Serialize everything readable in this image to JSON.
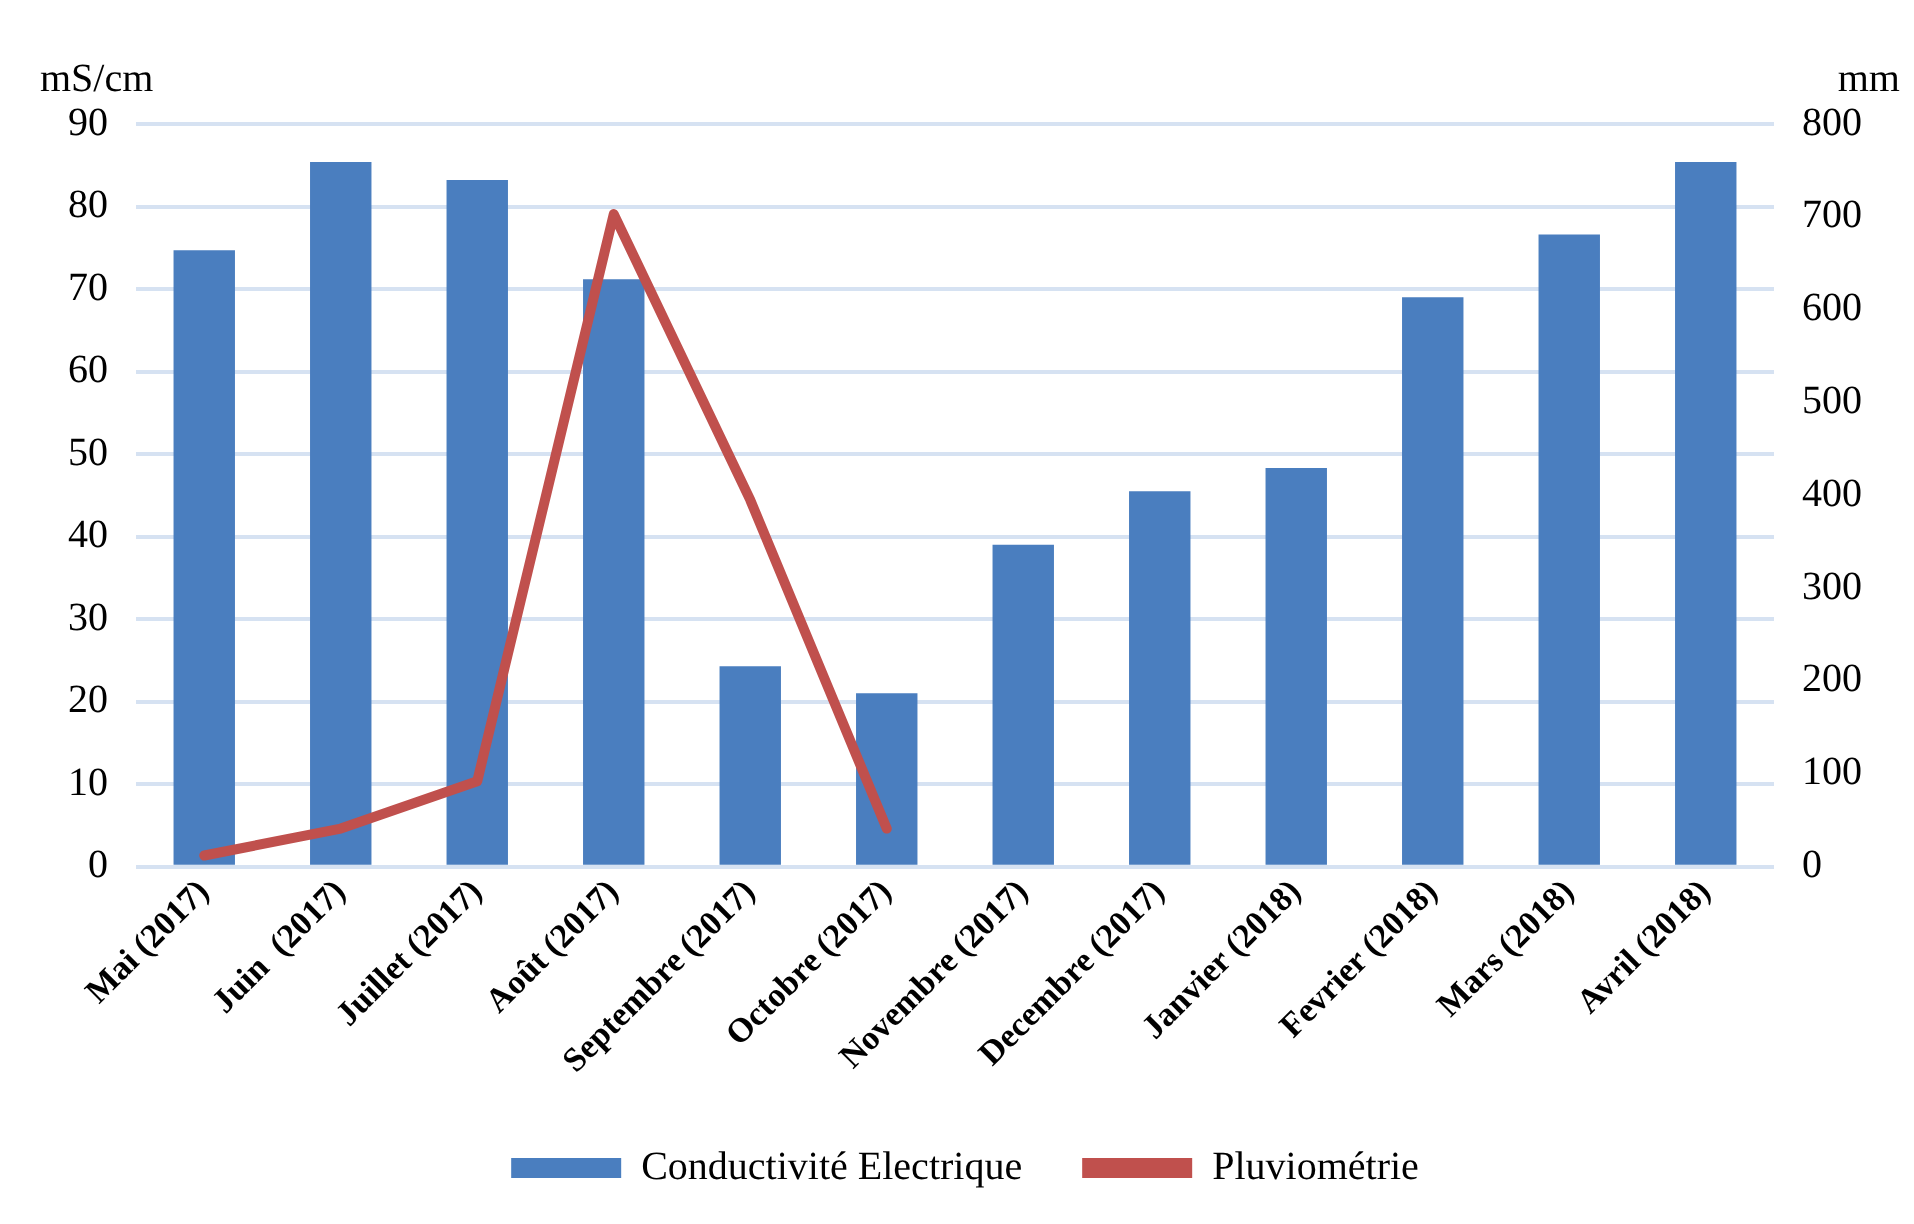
{
  "chart_data": {
    "type": "bar",
    "ylabel": "mS/cm",
    "y2label": "mm",
    "categories": [
      "Mai (2017)",
      "Juin  (2017)",
      "Juillet (2017)",
      "Août (2017)",
      "Septembre (2017)",
      "Octobre (2017)",
      "Novembre (2017)",
      "Decembre (2017)",
      "Janvier (2018)",
      "Fevrier (2018)",
      "Mars (2018)",
      "Avril (2018)"
    ],
    "series": [
      {
        "name": "Conductivité Electrique",
        "color": "#4a7ebf",
        "values": [
          74.7,
          85.4,
          83.2,
          71.2,
          24.3,
          21,
          39,
          45.5,
          48.3,
          69,
          76.6,
          85.4
        ]
      },
      {
        "name": "Pluviométrie",
        "type": "line",
        "axis": "y2",
        "color": "#c0504d",
        "values": [
          12,
          41,
          92,
          703,
          395,
          41,
          null,
          null,
          null,
          null,
          null,
          null
        ]
      }
    ],
    "ylim": [
      0,
      90
    ],
    "yticks": [
      0,
      10,
      20,
      30,
      40,
      50,
      60,
      70,
      80,
      90
    ],
    "y2lim": [
      0,
      800
    ],
    "y2ticks": [
      0,
      100,
      200,
      300,
      400,
      500,
      600,
      700,
      800
    ],
    "grid": "y",
    "legend": "bottom",
    "marker": "none",
    "line_style": "solid"
  }
}
